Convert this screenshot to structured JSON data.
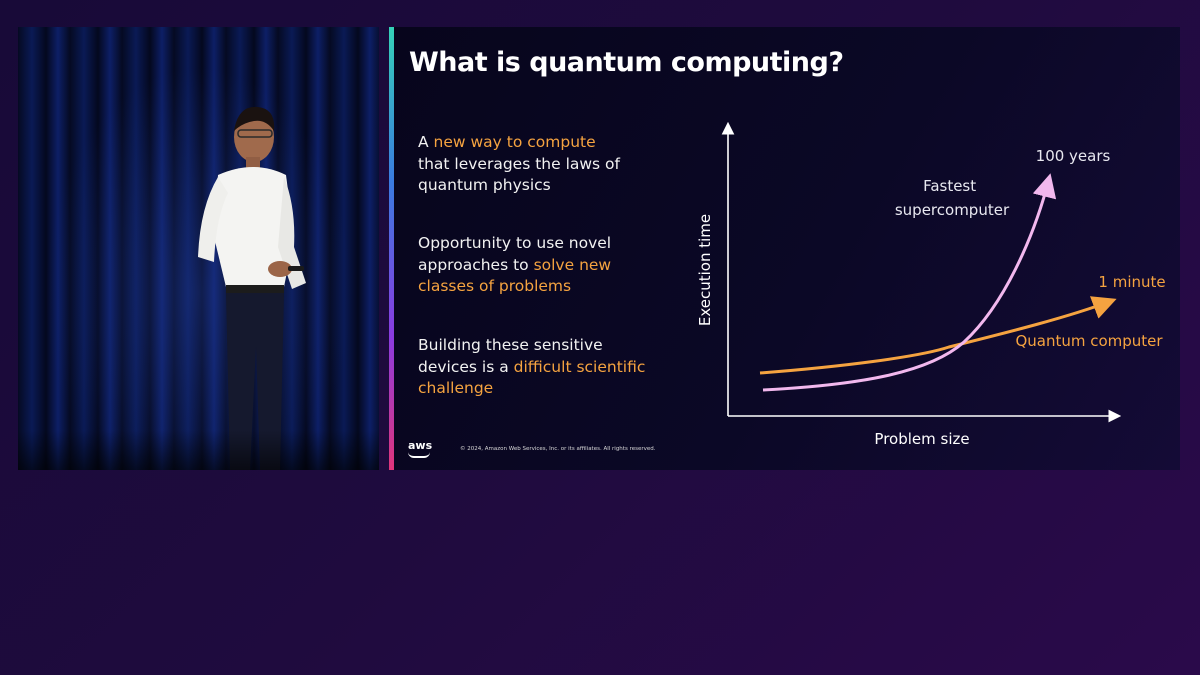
{
  "slide": {
    "title": "What is quantum computing?",
    "bullets": [
      {
        "before": "A ",
        "highlight": "new way to compute",
        "after": "that leverages the laws of quantum physics"
      },
      {
        "before": "Opportunity to use novel approaches to ",
        "highlight": "solve new classes of problems",
        "after": ""
      },
      {
        "before": "Building these sensitive devices is a ",
        "highlight": "difficult scientific challenge",
        "after": ""
      }
    ],
    "footer": {
      "logo": "aws",
      "copyright": "© 2024, Amazon Web Services, Inc. or its affiliates. All rights reserved."
    }
  },
  "colors": {
    "highlight": "#f5a340",
    "supercomputer_curve": "#f2b8ee",
    "quantum_curve": "#f5a340",
    "axis": "#ffffff"
  },
  "chart_data": {
    "type": "line",
    "xlabel": "Problem size",
    "ylabel": "Execution time",
    "series": [
      {
        "name": "Fastest supercomputer",
        "end_label": "100 years",
        "shape": "exponential"
      },
      {
        "name": "Quantum computer",
        "end_label": "1 minute",
        "shape": "polynomial"
      }
    ],
    "ticks": "none",
    "grid": false
  }
}
